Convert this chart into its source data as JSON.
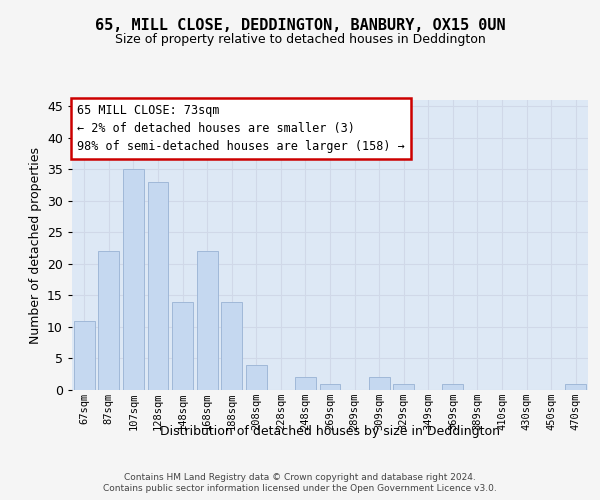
{
  "title": "65, MILL CLOSE, DEDDINGTON, BANBURY, OX15 0UN",
  "subtitle": "Size of property relative to detached houses in Deddington",
  "xlabel": "Distribution of detached houses by size in Deddington",
  "ylabel": "Number of detached properties",
  "categories": [
    "67sqm",
    "87sqm",
    "107sqm",
    "128sqm",
    "148sqm",
    "168sqm",
    "188sqm",
    "208sqm",
    "228sqm",
    "248sqm",
    "269sqm",
    "289sqm",
    "309sqm",
    "329sqm",
    "349sqm",
    "369sqm",
    "389sqm",
    "410sqm",
    "430sqm",
    "450sqm",
    "470sqm"
  ],
  "values": [
    11,
    22,
    35,
    33,
    14,
    22,
    14,
    4,
    0,
    2,
    1,
    0,
    2,
    1,
    0,
    1,
    0,
    0,
    0,
    0,
    1
  ],
  "bar_color": "#c5d8f0",
  "bar_edge_color": "#a0b8d8",
  "ylim": [
    0,
    46
  ],
  "yticks": [
    0,
    5,
    10,
    15,
    20,
    25,
    30,
    35,
    40,
    45
  ],
  "annotation_text": "65 MILL CLOSE: 73sqm\n← 2% of detached houses are smaller (3)\n98% of semi-detached houses are larger (158) →",
  "annotation_box_color": "#ffffff",
  "annotation_box_edge_color": "#cc0000",
  "grid_color": "#d0d8e8",
  "background_color": "#dde8f5",
  "fig_background_color": "#f5f5f5",
  "footer_line1": "Contains HM Land Registry data © Crown copyright and database right 2024.",
  "footer_line2": "Contains public sector information licensed under the Open Government Licence v3.0."
}
